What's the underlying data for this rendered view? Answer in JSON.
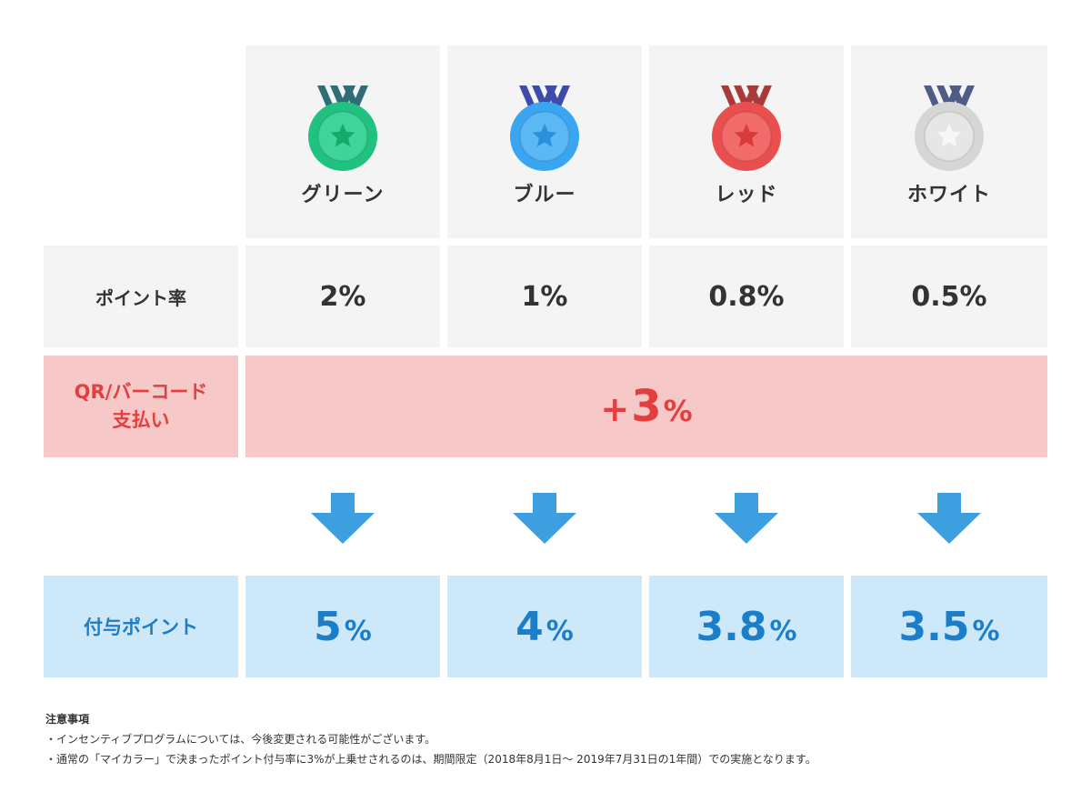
{
  "tiers": [
    {
      "name": "グリーン",
      "icon": "green-medal-icon",
      "ribbon": "#2f6e77",
      "outer": "#21c17f",
      "inner": "#3fd49a",
      "star": "#15a96c"
    },
    {
      "name": "ブルー",
      "icon": "blue-medal-icon",
      "ribbon": "#3e4ba8",
      "outer": "#3aa5f0",
      "inner": "#5cb8f5",
      "star": "#2b8fdc"
    },
    {
      "name": "レッド",
      "icon": "red-medal-icon",
      "ribbon": "#a83a3a",
      "outer": "#ea4f4f",
      "inner": "#f26b6b",
      "star": "#d93a3a"
    },
    {
      "name": "ホワイト",
      "icon": "white-medal-icon",
      "ribbon": "#4d5d86",
      "outer": "#d6d6d6",
      "inner": "#e6e6e6",
      "star": "#f7f7f7"
    }
  ],
  "point_rate": {
    "label": "ポイント率",
    "values": [
      "2%",
      "1%",
      "0.8%",
      "0.5%"
    ]
  },
  "qr_payment": {
    "label_line1": "QR/バーコード",
    "label_line2": "支払い",
    "bonus_prefix": "+",
    "bonus_number": "3",
    "bonus_unit": "%"
  },
  "granted_points": {
    "label": "付与ポイント",
    "values": [
      {
        "number": "5",
        "unit": "%"
      },
      {
        "number": "4",
        "unit": "%"
      },
      {
        "number": "3.8",
        "unit": "%"
      },
      {
        "number": "3.5",
        "unit": "%"
      }
    ]
  },
  "notes": {
    "title": "注意事項",
    "items": [
      "・インセンティブプログラムについては、今後変更される可能性がございます。",
      "・通常の「マイカラー」で決まったポイント付与率に3%が上乗せされるのは、期間限定（2018年8月1日〜 2019年7月31日の1年間）での実施となります。"
    ]
  },
  "colors": {
    "arrow": "#3e9fe0",
    "qr_red": "#e53e3e",
    "point_blue": "#1c7ec9"
  }
}
